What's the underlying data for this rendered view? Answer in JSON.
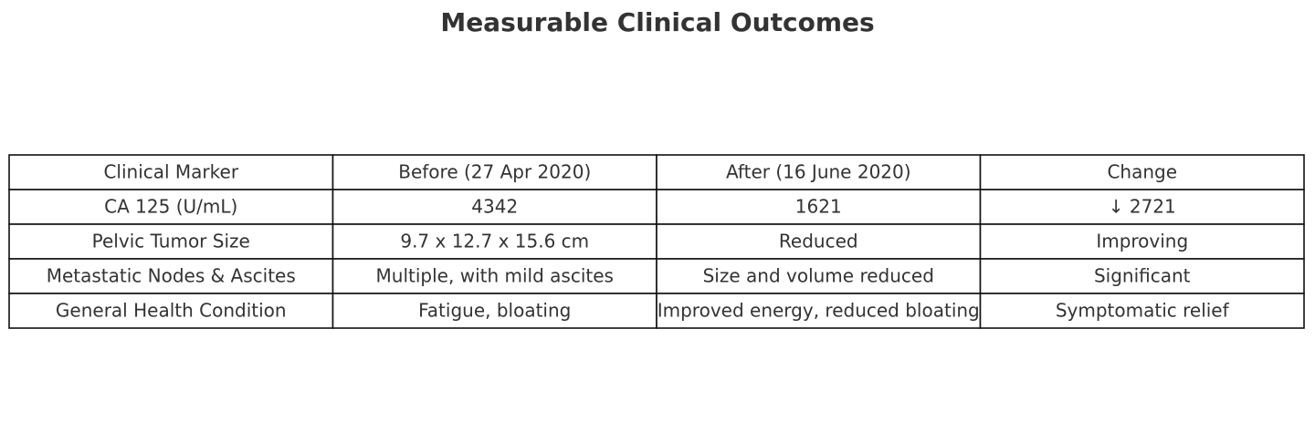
{
  "title": "Measurable Clinical Outcomes",
  "table": {
    "header": [
      "Clinical Marker",
      "Before (27 Apr 2020)",
      "After (16 June 2020)",
      "Change"
    ],
    "rows": [
      [
        "CA 125 (U/mL)",
        4342,
        1621,
        "↓ 2721"
      ],
      [
        "Pelvic Tumor Size",
        "9.7 x 12.7 x 15.6 cm",
        "Reduced",
        "Improving"
      ],
      [
        "Metastatic Nodes & Ascites",
        "Multiple, with mild ascites",
        "Size and volume reduced",
        "Significant"
      ],
      [
        "General Health Condition",
        "Fatigue, bloating",
        "Improved energy, reduced bloating",
        "Symptomatic relief"
      ]
    ]
  }
}
